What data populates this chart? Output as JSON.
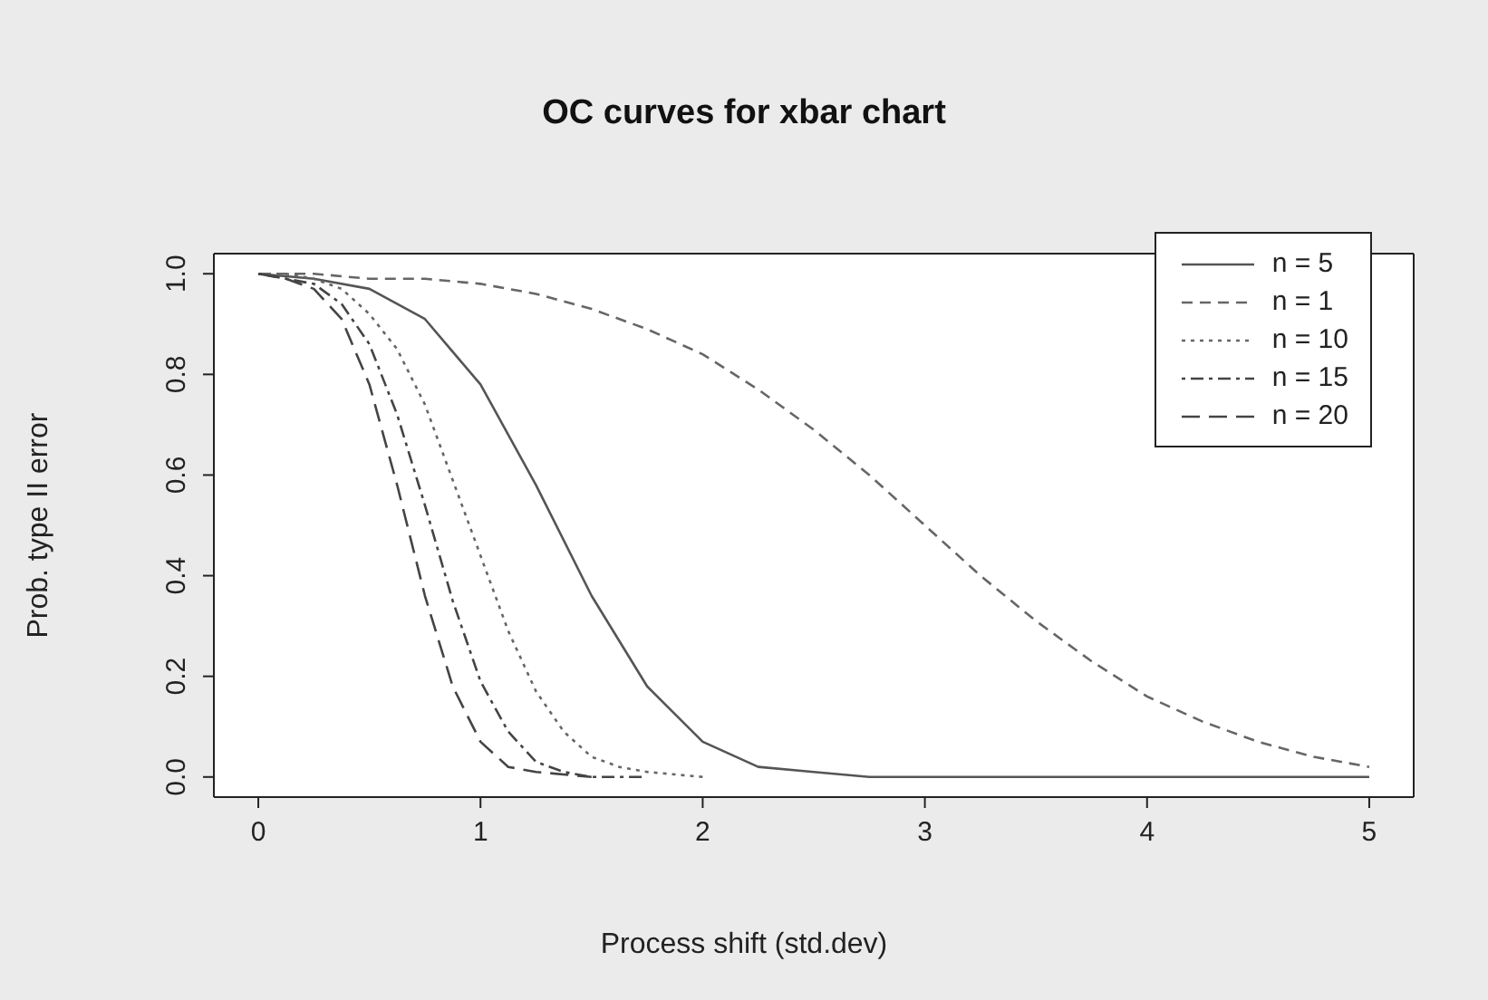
{
  "chart_data": {
    "type": "line",
    "title": "OC curves for xbar chart",
    "xlabel": "Process shift (std.dev)",
    "ylabel": "Prob. type II error",
    "xlim": [
      -0.2,
      5.2
    ],
    "xticks": [
      0,
      1,
      2,
      3,
      4,
      5
    ],
    "ylim": [
      -0.04,
      1.04
    ],
    "yticks": [
      {
        "value": 0,
        "label": "0.0"
      },
      {
        "value": 0.2,
        "label": "0.2"
      },
      {
        "value": 0.4,
        "label": "0.4"
      },
      {
        "value": 0.6,
        "label": "0.6"
      },
      {
        "value": 0.8,
        "label": "0.8"
      },
      {
        "value": 1,
        "label": "1.0"
      }
    ],
    "grid": false,
    "legend": "top right",
    "marker": "none",
    "series": [
      {
        "name": "n = 5",
        "color": "#555555",
        "line_style": "solid",
        "x": [
          0,
          0.25,
          0.5,
          0.75,
          1,
          1.25,
          1.5,
          1.75,
          2,
          2.25,
          2.5,
          2.75,
          3,
          4,
          5
        ],
        "values": [
          1,
          0.99,
          0.97,
          0.91,
          0.78,
          0.58,
          0.36,
          0.18,
          0.07,
          0.02,
          0.01,
          0,
          0,
          0,
          0
        ]
      },
      {
        "name": "n = 1",
        "color": "#666666",
        "line_style": "dashed",
        "x": [
          0,
          0.25,
          0.5,
          0.75,
          1,
          1.25,
          1.5,
          1.75,
          2,
          2.25,
          2.5,
          2.75,
          3,
          3.25,
          3.5,
          3.75,
          4,
          4.25,
          4.5,
          4.75,
          5
        ],
        "values": [
          1,
          1,
          0.99,
          0.99,
          0.98,
          0.96,
          0.93,
          0.89,
          0.84,
          0.77,
          0.69,
          0.6,
          0.5,
          0.4,
          0.31,
          0.23,
          0.16,
          0.11,
          0.07,
          0.04,
          0.02
        ]
      },
      {
        "name": "n = 10",
        "color": "#666666",
        "line_style": "dotted",
        "x": [
          0,
          0.125,
          0.25,
          0.375,
          0.5,
          0.625,
          0.75,
          0.875,
          1,
          1.125,
          1.25,
          1.375,
          1.5,
          1.625,
          1.75,
          2
        ],
        "values": [
          1,
          1,
          0.99,
          0.97,
          0.92,
          0.85,
          0.74,
          0.59,
          0.44,
          0.29,
          0.17,
          0.09,
          0.04,
          0.02,
          0.01,
          0
        ]
      },
      {
        "name": "n = 15",
        "color": "#444444",
        "line_style": "dashdot",
        "x": [
          0,
          0.125,
          0.25,
          0.375,
          0.5,
          0.625,
          0.75,
          0.875,
          1,
          1.125,
          1.25,
          1.375,
          1.5,
          1.75
        ],
        "values": [
          1,
          0.99,
          0.98,
          0.94,
          0.86,
          0.72,
          0.54,
          0.35,
          0.19,
          0.09,
          0.03,
          0.01,
          0,
          0
        ]
      },
      {
        "name": "n = 20",
        "color": "#444444",
        "line_style": "longdash",
        "x": [
          0,
          0.125,
          0.25,
          0.375,
          0.5,
          0.625,
          0.75,
          0.875,
          1,
          1.125,
          1.25,
          1.5
        ],
        "values": [
          1,
          0.99,
          0.97,
          0.91,
          0.78,
          0.58,
          0.36,
          0.18,
          0.07,
          0.02,
          0.01,
          0
        ]
      }
    ]
  }
}
